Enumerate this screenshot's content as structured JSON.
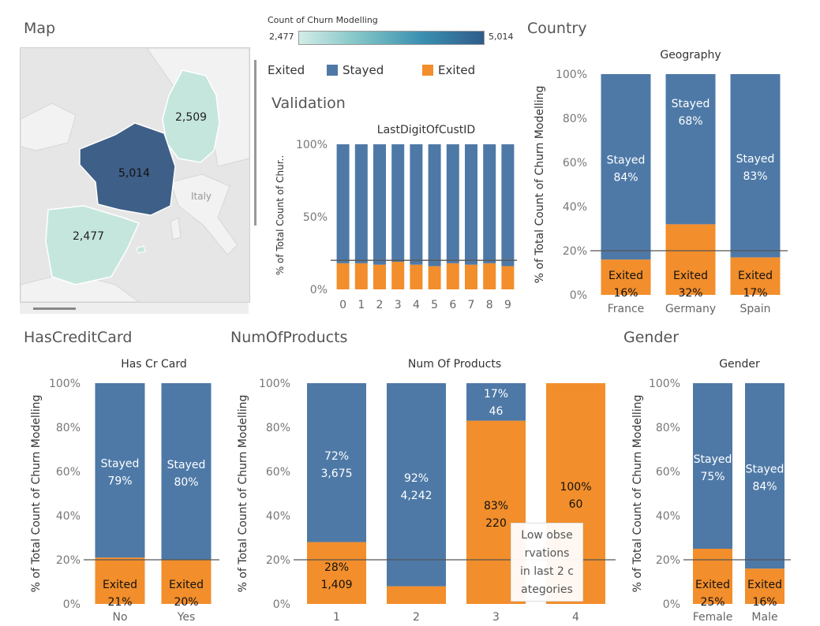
{
  "sections": {
    "map": "Map",
    "validation": "Validation",
    "country": "Country",
    "hascreditcard": "HasCreditCard",
    "numofproducts": "NumOfProducts",
    "gender": "Gender"
  },
  "color_legend": {
    "title": "Count of Churn Modelling",
    "min": "2,477",
    "max": "5,014",
    "gradient": [
      "#d3ece6",
      "#2f5c8a"
    ]
  },
  "exited_legend": {
    "title": "Exited",
    "items": [
      {
        "label": "Stayed",
        "color": "#4e79a7"
      },
      {
        "label": "Exited",
        "color": "#f28e2b"
      }
    ]
  },
  "map": {
    "regions": [
      {
        "name": "France",
        "value": "5,014",
        "color": "#3e5f87"
      },
      {
        "name": "Germany",
        "value": "2,509",
        "color": "#c5e6dd"
      },
      {
        "name": "Spain",
        "value": "2,477",
        "color": "#c5e6dd"
      }
    ],
    "place_label": "Italy"
  },
  "note": [
    "Low obse",
    "rvations",
    "in last 2 c",
    "ategories"
  ],
  "chart_data": [
    {
      "id": "validation",
      "type": "bar",
      "stacked": true,
      "title": "LastDigitOfCustID",
      "ylabel": "% of Total Count of Chur..",
      "yticks": [
        "0%",
        "50%",
        "100%"
      ],
      "ylim": [
        0,
        100
      ],
      "categories": [
        "0",
        "1",
        "2",
        "3",
        "4",
        "5",
        "6",
        "7",
        "8",
        "9"
      ],
      "series": [
        {
          "name": "Exited",
          "values": [
            18,
            18,
            17,
            19,
            17,
            16,
            18,
            17,
            18,
            16
          ]
        },
        {
          "name": "Stayed",
          "values": [
            82,
            82,
            83,
            81,
            83,
            84,
            82,
            83,
            82,
            84
          ]
        }
      ],
      "reference_line": 20
    },
    {
      "id": "country",
      "type": "bar",
      "stacked": true,
      "title": "Geography",
      "ylabel": "% of Total Count of Churn Modelling",
      "yticks": [
        "0%",
        "20%",
        "40%",
        "60%",
        "80%",
        "100%"
      ],
      "ylim": [
        0,
        100
      ],
      "categories": [
        "France",
        "Germany",
        "Spain"
      ],
      "series": [
        {
          "name": "Exited",
          "values": [
            16,
            32,
            17
          ],
          "labels": [
            [
              "Exited",
              "16%"
            ],
            [
              "Exited",
              "32%"
            ],
            [
              "Exited",
              "17%"
            ]
          ]
        },
        {
          "name": "Stayed",
          "values": [
            84,
            68,
            83
          ],
          "labels": [
            [
              "Stayed",
              "84%"
            ],
            [
              "Stayed",
              "68%"
            ],
            [
              "Stayed",
              "83%"
            ]
          ]
        }
      ],
      "reference_line": 20
    },
    {
      "id": "hascreditcard",
      "type": "bar",
      "stacked": true,
      "title": "Has Cr Card",
      "ylabel": "% of Total Count of Churn Modelling",
      "yticks": [
        "0%",
        "20%",
        "40%",
        "60%",
        "80%",
        "100%"
      ],
      "ylim": [
        0,
        100
      ],
      "categories": [
        "No",
        "Yes"
      ],
      "series": [
        {
          "name": "Exited",
          "values": [
            21,
            20
          ],
          "labels": [
            [
              "Exited",
              "21%"
            ],
            [
              "Exited",
              "20%"
            ]
          ]
        },
        {
          "name": "Stayed",
          "values": [
            79,
            80
          ],
          "labels": [
            [
              "Stayed",
              "79%"
            ],
            [
              "Stayed",
              "80%"
            ]
          ]
        }
      ],
      "reference_line": 20
    },
    {
      "id": "numofproducts",
      "type": "bar",
      "stacked": true,
      "title": "Num Of Products",
      "ylabel": "% of Total Count of Churn Modelling",
      "yticks": [
        "0%",
        "20%",
        "40%",
        "60%",
        "80%",
        "100%"
      ],
      "ylim": [
        0,
        100
      ],
      "categories": [
        "1",
        "2",
        "3",
        "4"
      ],
      "series": [
        {
          "name": "Exited",
          "values": [
            28,
            8,
            83,
            100
          ],
          "labels": [
            [
              "28%",
              "1,409"
            ],
            null,
            [
              "83%",
              "220"
            ],
            [
              "100%",
              "60"
            ]
          ]
        },
        {
          "name": "Stayed",
          "values": [
            72,
            92,
            17,
            0
          ],
          "labels": [
            [
              "72%",
              "3,675"
            ],
            [
              "92%",
              "4,242"
            ],
            [
              "17%",
              "46"
            ],
            null
          ]
        }
      ],
      "reference_line": 20
    },
    {
      "id": "gender",
      "type": "bar",
      "stacked": true,
      "title": "Gender",
      "ylabel": "% of Total Count of Churn Modelling",
      "yticks": [
        "0%",
        "20%",
        "40%",
        "60%",
        "80%",
        "100%"
      ],
      "ylim": [
        0,
        100
      ],
      "categories": [
        "Female",
        "Male"
      ],
      "series": [
        {
          "name": "Exited",
          "values": [
            25,
            16
          ],
          "labels": [
            [
              "Exited",
              "25%"
            ],
            [
              "Exited",
              "16%"
            ]
          ]
        },
        {
          "name": "Stayed",
          "values": [
            75,
            84
          ],
          "labels": [
            [
              "Stayed",
              "75%"
            ],
            [
              "Stayed",
              "84%"
            ]
          ]
        }
      ],
      "reference_line": 20
    }
  ]
}
